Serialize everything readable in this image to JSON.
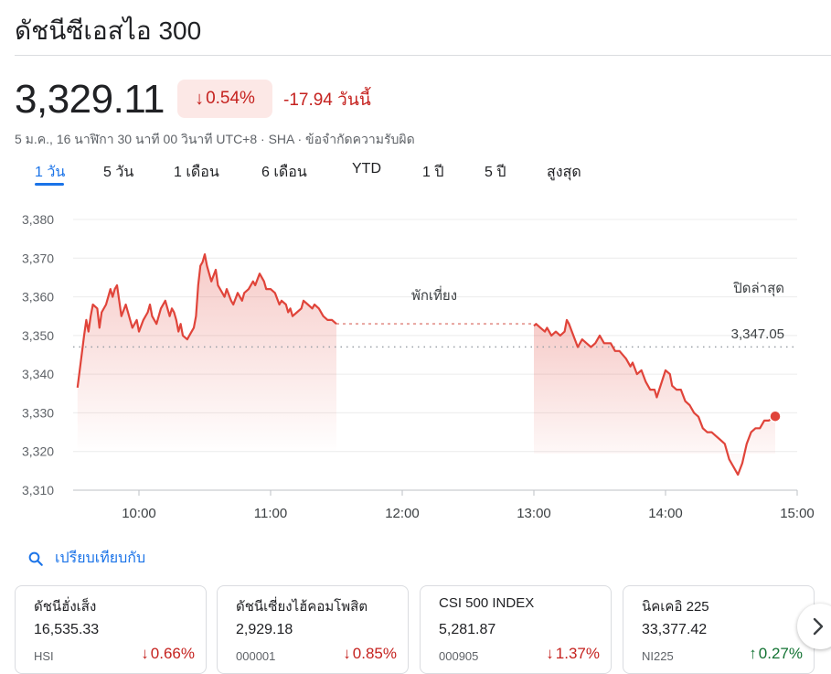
{
  "header": {
    "title": "ดัชนีซีเอสไอ 300"
  },
  "quote": {
    "price": "3,329.11",
    "pct_arrow": "↓",
    "pct_change": "0.54%",
    "abs_change": "-17.94 วันนี้",
    "meta": "5 ม.ค., 16 นาฬิกา 30 นาที 00 วินาที UTC+8 · SHA · ข้อจำกัดความรับผิด"
  },
  "tabs": [
    "1 วัน",
    "5 วัน",
    "1 เดือน",
    "6 เดือน",
    "YTD",
    "1 ปี",
    "5 ปี",
    "สูงสุด"
  ],
  "colors": {
    "accent": "#1a73e8",
    "down": "#c5221f",
    "up": "#137333",
    "line": "#e0443a"
  },
  "chart_data": {
    "type": "line",
    "ylim": [
      3310,
      3380
    ],
    "yticks": [
      "3,380",
      "3,370",
      "3,360",
      "3,350",
      "3,340",
      "3,330",
      "3,320",
      "3,310"
    ],
    "xticks": [
      "10:00",
      "11:00",
      "12:00",
      "13:00",
      "14:00",
      "15:00"
    ],
    "x_domain": [
      "09:30",
      "15:00"
    ],
    "break_label": "พักเที่ยง",
    "prev_close_label": "ปิดล่าสุด",
    "prev_close_value": "3,347.05",
    "prev_close": 3347.05,
    "morning": [
      [
        "09:32",
        3336.5
      ],
      [
        "09:33",
        3341
      ],
      [
        "09:35",
        3350
      ],
      [
        "09:36",
        3354
      ],
      [
        "09:37",
        3351
      ],
      [
        "09:38",
        3355
      ],
      [
        "09:39",
        3358
      ],
      [
        "09:41",
        3357
      ],
      [
        "09:42",
        3352
      ],
      [
        "09:43",
        3356
      ],
      [
        "09:45",
        3358
      ],
      [
        "09:47",
        3362
      ],
      [
        "09:48",
        3360
      ],
      [
        "09:49",
        3362
      ],
      [
        "09:50",
        3363
      ],
      [
        "09:52",
        3355
      ],
      [
        "09:54",
        3358
      ],
      [
        "09:55",
        3356
      ],
      [
        "09:57",
        3352
      ],
      [
        "09:59",
        3354
      ],
      [
        "10:00",
        3351
      ],
      [
        "10:02",
        3354
      ],
      [
        "10:04",
        3356
      ],
      [
        "10:05",
        3358
      ],
      [
        "10:06",
        3355
      ],
      [
        "10:08",
        3353
      ],
      [
        "10:10",
        3357
      ],
      [
        "10:12",
        3359
      ],
      [
        "10:13",
        3357
      ],
      [
        "10:14",
        3355
      ],
      [
        "10:15",
        3357
      ],
      [
        "10:16",
        3356
      ],
      [
        "10:17",
        3354
      ],
      [
        "10:18",
        3351
      ],
      [
        "10:19",
        3353
      ],
      [
        "10:20",
        3350
      ],
      [
        "10:22",
        3349
      ],
      [
        "10:24",
        3351
      ],
      [
        "10:25",
        3352
      ],
      [
        "10:26",
        3355
      ],
      [
        "10:27",
        3363
      ],
      [
        "10:28",
        3368
      ],
      [
        "10:29",
        3369
      ],
      [
        "10:30",
        3371
      ],
      [
        "10:31",
        3368
      ],
      [
        "10:33",
        3364
      ],
      [
        "10:35",
        3367
      ],
      [
        "10:36",
        3363
      ],
      [
        "10:38",
        3361
      ],
      [
        "10:39",
        3360
      ],
      [
        "10:40",
        3362
      ],
      [
        "10:42",
        3359
      ],
      [
        "10:43",
        3358
      ],
      [
        "10:45",
        3361
      ],
      [
        "10:47",
        3359
      ],
      [
        "10:48",
        3361
      ],
      [
        "10:50",
        3362
      ],
      [
        "10:52",
        3364
      ],
      [
        "10:53",
        3363
      ],
      [
        "10:55",
        3366
      ],
      [
        "10:57",
        3364
      ],
      [
        "10:58",
        3362
      ],
      [
        "11:00",
        3362
      ],
      [
        "11:02",
        3361
      ],
      [
        "11:04",
        3358
      ],
      [
        "11:05",
        3359
      ],
      [
        "11:07",
        3358
      ],
      [
        "11:08",
        3356
      ],
      [
        "11:09",
        3357
      ],
      [
        "11:10",
        3355
      ],
      [
        "11:12",
        3356
      ],
      [
        "11:14",
        3357
      ],
      [
        "11:15",
        3359
      ],
      [
        "11:17",
        3358
      ],
      [
        "11:19",
        3357
      ],
      [
        "11:20",
        3358
      ],
      [
        "11:22",
        3357
      ],
      [
        "11:24",
        3355
      ],
      [
        "11:26",
        3354
      ],
      [
        "11:28",
        3354
      ],
      [
        "11:30",
        3353
      ]
    ],
    "afternoon": [
      [
        "13:00",
        3352.5
      ],
      [
        "13:01",
        3353
      ],
      [
        "13:03",
        3352
      ],
      [
        "13:05",
        3351
      ],
      [
        "13:06",
        3352
      ],
      [
        "13:08",
        3350
      ],
      [
        "13:10",
        3351
      ],
      [
        "13:12",
        3350
      ],
      [
        "13:14",
        3351
      ],
      [
        "13:15",
        3354
      ],
      [
        "13:16",
        3353
      ],
      [
        "13:18",
        3350
      ],
      [
        "13:20",
        3347
      ],
      [
        "13:22",
        3349
      ],
      [
        "13:24",
        3348
      ],
      [
        "13:26",
        3347
      ],
      [
        "13:28",
        3348
      ],
      [
        "13:30",
        3350
      ],
      [
        "13:32",
        3348
      ],
      [
        "13:35",
        3348
      ],
      [
        "13:37",
        3346
      ],
      [
        "13:39",
        3346
      ],
      [
        "13:42",
        3344
      ],
      [
        "13:44",
        3342
      ],
      [
        "13:45",
        3343
      ],
      [
        "13:47",
        3340
      ],
      [
        "13:49",
        3341
      ],
      [
        "13:51",
        3338
      ],
      [
        "13:53",
        3336
      ],
      [
        "13:55",
        3336
      ],
      [
        "13:56",
        3334
      ],
      [
        "14:00",
        3341
      ],
      [
        "14:02",
        3340
      ],
      [
        "14:03",
        3337
      ],
      [
        "14:05",
        3336
      ],
      [
        "14:07",
        3336
      ],
      [
        "14:09",
        3333
      ],
      [
        "14:11",
        3332
      ],
      [
        "14:13",
        3330
      ],
      [
        "14:15",
        3329
      ],
      [
        "14:17",
        3326
      ],
      [
        "14:19",
        3325
      ],
      [
        "14:21",
        3325
      ],
      [
        "14:23",
        3324
      ],
      [
        "14:25",
        3323
      ],
      [
        "14:27",
        3322
      ],
      [
        "14:29",
        3318
      ],
      [
        "14:31",
        3316
      ],
      [
        "14:33",
        3314
      ],
      [
        "14:35",
        3317
      ],
      [
        "14:37",
        3322
      ],
      [
        "14:39",
        3325
      ],
      [
        "14:41",
        3326
      ],
      [
        "14:43",
        3326
      ],
      [
        "14:45",
        3328
      ],
      [
        "14:47",
        3328
      ],
      [
        "14:50",
        3329.11
      ]
    ]
  },
  "compare": {
    "label": "เปรียบเทียบกับ"
  },
  "cards": [
    {
      "name": "ดัชนีฮั่งเส็ง",
      "value": "16,535.33",
      "symbol": "HSI",
      "arrow": "↓",
      "pct": "0.66%",
      "dir": "down"
    },
    {
      "name": "ดัชนีเซี่ยงไฮ้คอมโพสิต",
      "value": "2,929.18",
      "symbol": "000001",
      "arrow": "↓",
      "pct": "0.85%",
      "dir": "down"
    },
    {
      "name": "CSI 500 INDEX",
      "value": "5,281.87",
      "symbol": "000905",
      "arrow": "↓",
      "pct": "1.37%",
      "dir": "down"
    },
    {
      "name": "นิคเคอิ 225",
      "value": "33,377.42",
      "symbol": "NI225",
      "arrow": "↑",
      "pct": "0.27%",
      "dir": "up"
    }
  ]
}
